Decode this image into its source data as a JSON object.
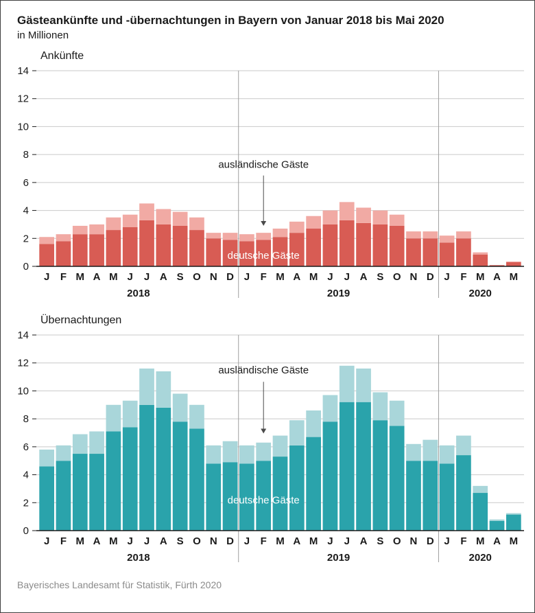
{
  "header": {
    "title": "Gästeankünfte und -übernachtungen in Bayern von Januar 2018 bis Mai 2020",
    "subtitle": "in Millionen"
  },
  "footer": {
    "source": "Bayerisches Landesamt für Statistik, Fürth 2020"
  },
  "colors": {
    "grid": "#c9c9c9",
    "axis": "#1a1a1a",
    "separator": "#9e9e9e",
    "arrow": "#4a4a4a"
  },
  "chart_data": [
    {
      "type": "bar",
      "stacked": true,
      "title": "Ankünfte",
      "ylim": [
        0,
        14
      ],
      "ytick_step": 2,
      "grid": true,
      "categories": [
        "J",
        "F",
        "M",
        "A",
        "M",
        "J",
        "J",
        "A",
        "S",
        "O",
        "N",
        "D",
        "J",
        "F",
        "M",
        "A",
        "M",
        "J",
        "J",
        "A",
        "S",
        "O",
        "N",
        "D",
        "J",
        "F",
        "M",
        "A",
        "M"
      ],
      "year_groups": [
        {
          "label": "2018",
          "start": 0,
          "count": 12
        },
        {
          "label": "2019",
          "start": 12,
          "count": 12
        },
        {
          "label": "2020",
          "start": 24,
          "count": 5
        }
      ],
      "series": [
        {
          "name": "deutsche Gäste",
          "color": "#d85c54",
          "values": [
            1.6,
            1.8,
            2.3,
            2.3,
            2.6,
            2.8,
            3.3,
            3.0,
            2.9,
            2.6,
            2.0,
            1.9,
            1.8,
            1.9,
            2.1,
            2.4,
            2.7,
            3.0,
            3.3,
            3.1,
            3.0,
            2.9,
            2.0,
            2.0,
            1.7,
            2.0,
            0.85,
            0.08,
            0.3
          ]
        },
        {
          "name": "ausländische Gäste",
          "color": "#f1aaa4",
          "values": [
            0.5,
            0.5,
            0.6,
            0.7,
            0.9,
            0.9,
            1.2,
            1.1,
            1.0,
            0.9,
            0.4,
            0.5,
            0.5,
            0.5,
            0.6,
            0.8,
            0.9,
            1.0,
            1.3,
            1.1,
            1.0,
            0.8,
            0.5,
            0.5,
            0.5,
            0.5,
            0.15,
            0.02,
            0.05
          ]
        }
      ]
    },
    {
      "type": "bar",
      "stacked": true,
      "title": "Übernachtungen",
      "ylim": [
        0,
        14
      ],
      "ytick_step": 2,
      "grid": true,
      "categories": [
        "J",
        "F",
        "M",
        "A",
        "M",
        "J",
        "J",
        "A",
        "S",
        "O",
        "N",
        "D",
        "J",
        "F",
        "M",
        "A",
        "M",
        "J",
        "J",
        "A",
        "S",
        "O",
        "N",
        "D",
        "J",
        "F",
        "M",
        "A",
        "M"
      ],
      "year_groups": [
        {
          "label": "2018",
          "start": 0,
          "count": 12
        },
        {
          "label": "2019",
          "start": 12,
          "count": 12
        },
        {
          "label": "2020",
          "start": 24,
          "count": 5
        }
      ],
      "series": [
        {
          "name": "deutsche Gäste",
          "color": "#2aa3ab",
          "values": [
            4.6,
            5.0,
            5.5,
            5.5,
            7.1,
            7.4,
            9.0,
            8.8,
            7.8,
            7.3,
            4.8,
            4.9,
            4.8,
            5.0,
            5.3,
            6.1,
            6.7,
            7.8,
            9.2,
            9.2,
            7.9,
            7.5,
            5.0,
            5.0,
            4.8,
            5.4,
            2.7,
            0.7,
            1.15
          ]
        },
        {
          "name": "ausländische Gäste",
          "color": "#a9d6da",
          "values": [
            1.2,
            1.1,
            1.4,
            1.6,
            1.9,
            1.9,
            2.6,
            2.6,
            2.0,
            1.7,
            1.3,
            1.5,
            1.3,
            1.3,
            1.5,
            1.8,
            1.9,
            1.9,
            2.6,
            2.4,
            2.0,
            1.8,
            1.2,
            1.5,
            1.3,
            1.4,
            0.5,
            0.1,
            0.1
          ]
        }
      ]
    }
  ]
}
